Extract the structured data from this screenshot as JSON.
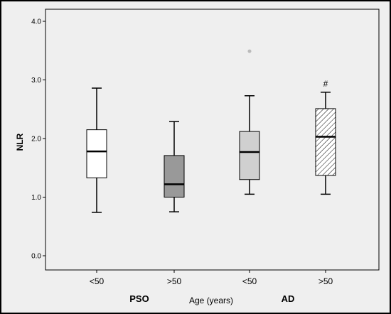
{
  "chart_data": {
    "type": "box",
    "ylabel": "NLR",
    "xlabel": "Age (years)",
    "ylim": [
      0,
      4
    ],
    "yticks": [
      "0.0",
      "1.0",
      "2.0",
      "3.0",
      "4.0"
    ],
    "group_labels": [
      "PSO",
      "AD"
    ],
    "boxes": [
      {
        "category": "<50",
        "group": "PSO",
        "min": 0.74,
        "q1": 1.33,
        "median": 1.78,
        "q3": 2.15,
        "max": 2.86,
        "fill": "#ffffff",
        "outliers": [],
        "annotation": ""
      },
      {
        "category": ">50",
        "group": "PSO",
        "min": 0.75,
        "q1": 1.0,
        "median": 1.22,
        "q3": 1.71,
        "max": 2.29,
        "fill": "#999999",
        "outliers": [],
        "annotation": ""
      },
      {
        "category": "<50",
        "group": "AD",
        "min": 1.05,
        "q1": 1.3,
        "median": 1.77,
        "q3": 2.12,
        "max": 2.73,
        "fill": "#d0d0d0",
        "outliers": [
          3.49
        ],
        "annotation": ""
      },
      {
        "category": ">50",
        "group": "AD",
        "min": 1.05,
        "q1": 1.37,
        "median": 2.03,
        "q3": 2.51,
        "max": 2.79,
        "fill": "hatch",
        "outliers": [],
        "annotation": "#"
      }
    ]
  },
  "colors": {
    "background": "#efefef",
    "outlier": "#bbbbbb"
  }
}
